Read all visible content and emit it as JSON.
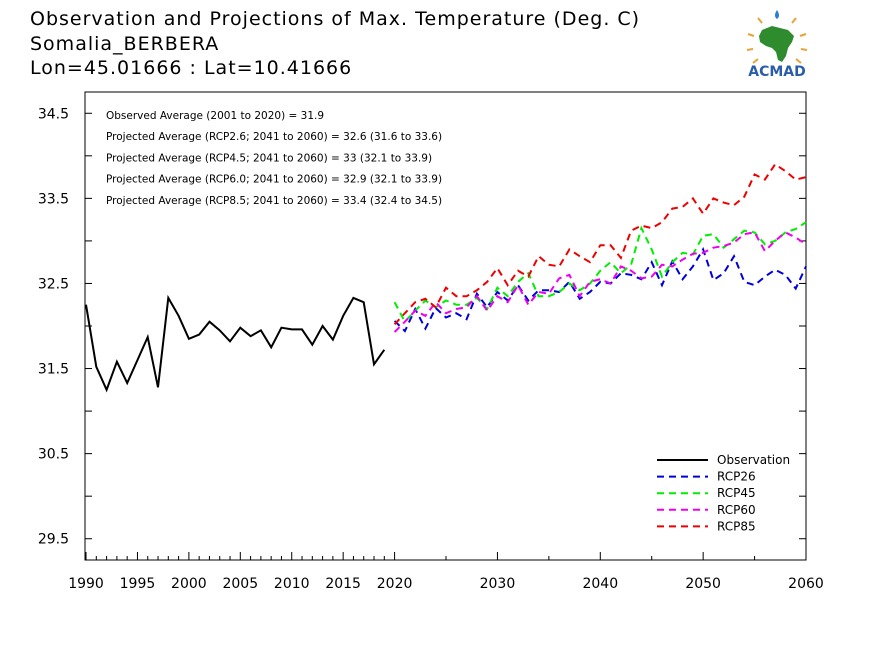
{
  "title": {
    "line1": "Observation and Projections of Max. Temperature (Deg. C)",
    "line2": "Somalia_BERBERA",
    "line3": "Lon=45.01666 : Lat=10.41666"
  },
  "logo": {
    "text": "ACMAD"
  },
  "annotations": [
    "Observed Average (2001 to 2020) = 31.9",
    "Projected Average (RCP2.6; 2041 to 2060) = 32.6 (31.6 to 33.6)",
    "Projected Average (RCP4.5; 2041 to 2060) = 33 (32.1 to 33.9)",
    "Projected Average (RCP6.0; 2041 to 2060) = 32.9 (32.1 to 33.9)",
    "Projected Average (RCP8.5; 2041 to 2060) = 33.4 (32.4 to 34.5)"
  ],
  "chart_data": {
    "type": "line",
    "xlim": [
      1989.9,
      2060
    ],
    "ylim": [
      29.25,
      34.75
    ],
    "x_ticks": [
      1990,
      1995,
      2000,
      2005,
      2010,
      2015,
      2020,
      2030,
      2040,
      2050,
      2060
    ],
    "y_ticks": [
      29.5,
      30.5,
      31.5,
      32.5,
      33.5,
      34.5
    ],
    "grid": false,
    "legend_position": "bottom-right",
    "series": [
      {
        "name": "Observation",
        "color": "#000000",
        "dash": "solid",
        "x": [
          1990,
          1991,
          1992,
          1993,
          1994,
          1995,
          1996,
          1997,
          1998,
          1999,
          2000,
          2001,
          2002,
          2003,
          2004,
          2005,
          2006,
          2007,
          2008,
          2009,
          2010,
          2011,
          2012,
          2013,
          2014,
          2015,
          2016,
          2017,
          2018,
          2019
        ],
        "y": [
          32.25,
          31.52,
          31.25,
          31.58,
          31.33,
          31.6,
          31.87,
          31.28,
          32.33,
          32.12,
          31.85,
          31.9,
          32.05,
          31.95,
          31.82,
          31.98,
          31.88,
          31.95,
          31.75,
          31.98,
          31.96,
          31.96,
          31.78,
          32.0,
          31.84,
          32.12,
          32.33,
          32.28,
          31.55,
          31.72
        ]
      },
      {
        "name": "RCP26",
        "color": "#0000dd",
        "dash": "dashed",
        "x": [
          2020,
          2021,
          2022,
          2023,
          2024,
          2025,
          2026,
          2027,
          2028,
          2029,
          2030,
          2031,
          2032,
          2033,
          2034,
          2035,
          2036,
          2037,
          2038,
          2039,
          2040,
          2041,
          2042,
          2043,
          2044,
          2045,
          2046,
          2047,
          2048,
          2049,
          2050,
          2051,
          2052,
          2053,
          2054,
          2055,
          2056,
          2057,
          2058,
          2059,
          2060
        ],
        "y": [
          32.06,
          31.94,
          32.2,
          31.97,
          32.21,
          32.1,
          32.15,
          32.08,
          32.38,
          32.22,
          32.4,
          32.3,
          32.48,
          32.3,
          32.42,
          32.42,
          32.4,
          32.52,
          32.32,
          32.4,
          32.52,
          32.5,
          32.62,
          32.6,
          32.55,
          32.75,
          32.48,
          32.76,
          32.55,
          32.7,
          32.9,
          32.54,
          32.62,
          32.82,
          32.52,
          32.48,
          32.58,
          32.66,
          32.6,
          32.44,
          32.7
        ]
      },
      {
        "name": "RCP45",
        "color": "#00ee00",
        "dash": "dashed",
        "x": [
          2020,
          2021,
          2022,
          2023,
          2024,
          2025,
          2026,
          2027,
          2028,
          2029,
          2030,
          2031,
          2032,
          2033,
          2034,
          2035,
          2036,
          2037,
          2038,
          2039,
          2040,
          2041,
          2042,
          2043,
          2044,
          2045,
          2046,
          2047,
          2048,
          2049,
          2050,
          2051,
          2052,
          2053,
          2054,
          2055,
          2056,
          2057,
          2058,
          2059,
          2060
        ],
        "y": [
          32.28,
          32.05,
          32.18,
          32.3,
          32.22,
          32.3,
          32.25,
          32.25,
          32.33,
          32.2,
          32.45,
          32.35,
          32.52,
          32.62,
          32.35,
          32.35,
          32.4,
          32.5,
          32.42,
          32.5,
          32.65,
          32.75,
          32.62,
          32.72,
          33.15,
          32.9,
          32.58,
          32.75,
          32.86,
          32.84,
          33.06,
          33.08,
          32.92,
          33.02,
          33.12,
          33.1,
          32.96,
          33.0,
          33.1,
          33.14,
          33.22
        ]
      },
      {
        "name": "RCP60",
        "color": "#ee00ee",
        "dash": "dashed",
        "x": [
          2020,
          2021,
          2022,
          2023,
          2024,
          2025,
          2026,
          2027,
          2028,
          2029,
          2030,
          2031,
          2032,
          2033,
          2034,
          2035,
          2036,
          2037,
          2038,
          2039,
          2040,
          2041,
          2042,
          2043,
          2044,
          2045,
          2046,
          2047,
          2048,
          2049,
          2050,
          2051,
          2052,
          2053,
          2054,
          2055,
          2056,
          2057,
          2058,
          2059,
          2060
        ],
        "y": [
          31.93,
          32.05,
          32.18,
          32.12,
          32.28,
          32.15,
          32.2,
          32.22,
          32.35,
          32.18,
          32.35,
          32.28,
          32.48,
          32.25,
          32.4,
          32.38,
          32.56,
          32.6,
          32.35,
          32.52,
          32.55,
          32.5,
          32.7,
          32.65,
          32.56,
          32.58,
          32.72,
          32.7,
          32.78,
          32.85,
          32.86,
          32.92,
          32.94,
          32.98,
          33.08,
          33.1,
          32.88,
          33.0,
          33.1,
          33.04,
          32.96
        ]
      },
      {
        "name": "RCP85",
        "color": "#ee0000",
        "dash": "dashed",
        "x": [
          2020,
          2021,
          2022,
          2023,
          2024,
          2025,
          2026,
          2027,
          2028,
          2029,
          2030,
          2031,
          2032,
          2033,
          2034,
          2035,
          2036,
          2037,
          2038,
          2039,
          2040,
          2041,
          2042,
          2043,
          2044,
          2045,
          2046,
          2047,
          2048,
          2049,
          2050,
          2051,
          2052,
          2053,
          2054,
          2055,
          2056,
          2057,
          2058,
          2059,
          2060
        ],
        "y": [
          32.02,
          32.15,
          32.28,
          32.32,
          32.22,
          32.45,
          32.35,
          32.35,
          32.42,
          32.52,
          32.68,
          32.48,
          32.65,
          32.58,
          32.82,
          32.72,
          32.7,
          32.9,
          32.82,
          32.75,
          32.95,
          32.95,
          32.8,
          33.12,
          33.18,
          33.15,
          33.22,
          33.38,
          33.4,
          33.5,
          33.32,
          33.5,
          33.45,
          33.42,
          33.52,
          33.78,
          33.72,
          33.9,
          33.82,
          33.72,
          33.75
        ]
      }
    ]
  }
}
